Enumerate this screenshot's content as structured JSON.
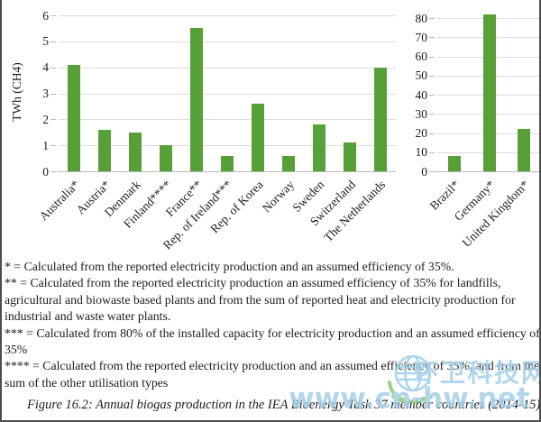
{
  "figure": {
    "footnotes": [
      "* = Calculated from the reported electricity production and an assumed efficiency of 35%.",
      "** = Calculated from the reported electricity production an assumed efficiency of 35% for landfills, agricultural and biowaste based plants and from the sum of reported heat and electricity production for industrial and waste water plants.",
      "*** = Calculated from 80% of the installed capacity for electricity production and an assumed efficiency of 35%",
      "**** = Calculated from the reported electricity production and an assumed efficiency of 35%, and from the sum of the other utilisation types"
    ],
    "caption": "Figure 16.2: Annual biogas production in the IEA Bioenergy Task 37 member countries (2014-15)."
  },
  "watermark": {
    "site_name": "环卫科技网",
    "url": "www.cn-hw.net",
    "text_color": "#a5cfe8",
    "globe_color": "#9fd0e8",
    "leaf_color": "#8cc87c"
  },
  "chart_data": [
    {
      "type": "bar",
      "title": "",
      "xlabel": "",
      "ylabel": "TWh (CH4)",
      "categories": [
        "Australia*",
        "Austria*",
        "Denmark",
        "Finland****",
        "France**",
        "Rep. of Ireland***",
        "Rep. of Korea",
        "Norway",
        "Sweden",
        "Switzerland",
        "The Netherlands"
      ],
      "values": [
        4.1,
        1.6,
        1.5,
        1.0,
        5.5,
        0.6,
        2.6,
        0.6,
        1.8,
        1.1,
        4.0
      ],
      "ylim": [
        0,
        6
      ],
      "ytick_step": 1,
      "bar_color": "#57a038",
      "grid": true,
      "legend": false
    },
    {
      "type": "bar",
      "title": "",
      "xlabel": "",
      "ylabel": "",
      "categories": [
        "Brazil*",
        "Germany*",
        "United Kingdom*"
      ],
      "values": [
        8,
        82,
        22
      ],
      "ylim": [
        0,
        80
      ],
      "ytick_step": 10,
      "bar_color": "#57a038",
      "grid": true,
      "legend": false
    }
  ]
}
